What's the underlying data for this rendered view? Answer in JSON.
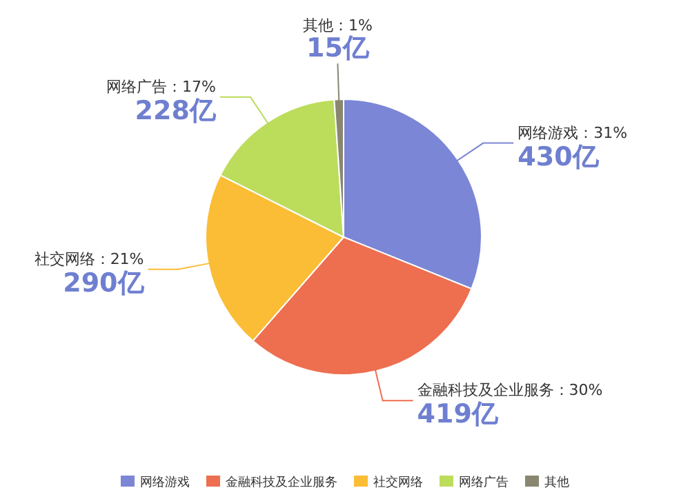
{
  "chart_data": {
    "type": "pie",
    "categories": [
      "网络游戏",
      "金融科技及企业服务",
      "社交网络",
      "网络广告",
      "其他"
    ],
    "values": [
      430,
      419,
      290,
      228,
      15
    ],
    "colors": [
      "#7b86d6",
      "#ee6e50",
      "#fbbd35",
      "#bcdc5c",
      "#8a8770"
    ],
    "value_labels": [
      "430亿",
      "419亿",
      "290亿",
      "228亿",
      "15亿"
    ],
    "annotations": [
      "：31%",
      "：30%",
      "：21%",
      "：17%",
      "：1%"
    ],
    "legend": "bottom"
  }
}
